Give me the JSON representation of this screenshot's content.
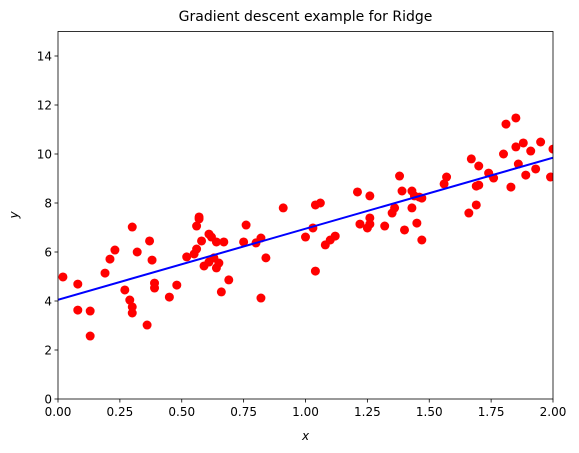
{
  "chart_data": {
    "type": "scatter",
    "title": "Gradient descent example for Ridge",
    "xlabel": "x",
    "ylabel": "y",
    "xlim": [
      0,
      2
    ],
    "ylim": [
      0,
      15
    ],
    "xticks": [
      {
        "value": 0,
        "label": "0.00"
      },
      {
        "value": 0.25,
        "label": "0.25"
      },
      {
        "value": 0.5,
        "label": "0.50"
      },
      {
        "value": 0.75,
        "label": "0.75"
      },
      {
        "value": 1,
        "label": "1.00"
      },
      {
        "value": 1.25,
        "label": "1.25"
      },
      {
        "value": 1.5,
        "label": "1.50"
      },
      {
        "value": 1.75,
        "label": "1.75"
      },
      {
        "value": 2,
        "label": "2.00"
      }
    ],
    "yticks": [
      0,
      2,
      4,
      6,
      8,
      10,
      12,
      14
    ],
    "points": {
      "color": "#ff0000",
      "x": [
        0.02,
        0.08,
        0.08,
        0.13,
        0.13,
        0.19,
        0.21,
        0.23,
        0.27,
        0.29,
        0.3,
        0.3,
        0.3,
        0.32,
        0.36,
        0.37,
        0.38,
        0.39,
        0.39,
        0.45,
        0.48,
        0.52,
        0.55,
        0.56,
        0.56,
        0.57,
        0.57,
        0.58,
        0.59,
        0.61,
        0.61,
        0.62,
        0.63,
        0.64,
        0.64,
        0.65,
        0.66,
        0.67,
        0.69,
        0.75,
        0.76,
        0.8,
        0.82,
        0.82,
        0.84,
        0.91,
        1.0,
        1.03,
        1.04,
        1.04,
        1.06,
        1.08,
        1.1,
        1.12,
        1.21,
        1.22,
        1.25,
        1.26,
        1.26,
        1.26,
        1.32,
        1.35,
        1.36,
        1.38,
        1.39,
        1.4,
        1.43,
        1.43,
        1.44,
        1.45,
        1.46,
        1.47,
        1.47,
        1.56,
        1.57,
        1.66,
        1.67,
        1.69,
        1.69,
        1.7,
        1.7,
        1.74,
        1.76,
        1.8,
        1.81,
        1.83,
        1.85,
        1.85,
        1.86,
        1.88,
        1.89,
        1.91,
        1.93,
        1.95,
        1.99,
        2.0
      ],
      "y": [
        4.98,
        4.69,
        3.63,
        3.59,
        2.57,
        5.14,
        5.71,
        6.08,
        4.45,
        4.04,
        3.76,
        3.51,
        7.02,
        6.0,
        3.02,
        6.45,
        5.67,
        4.73,
        4.53,
        4.16,
        4.65,
        5.8,
        5.92,
        6.12,
        7.06,
        7.35,
        7.43,
        6.45,
        5.43,
        5.59,
        6.73,
        6.61,
        5.76,
        5.35,
        6.41,
        5.55,
        4.37,
        6.41,
        4.86,
        6.41,
        7.1,
        6.37,
        6.57,
        4.12,
        5.76,
        7.8,
        6.61,
        6.98,
        7.92,
        5.22,
        8.0,
        6.29,
        6.49,
        6.65,
        8.45,
        7.14,
        6.98,
        8.29,
        7.39,
        7.14,
        7.06,
        7.59,
        7.8,
        9.1,
        8.49,
        6.9,
        8.49,
        7.8,
        8.29,
        7.18,
        8.24,
        8.2,
        6.49,
        8.78,
        9.06,
        7.59,
        9.8,
        8.69,
        7.92,
        9.51,
        8.73,
        9.22,
        9.02,
        10.0,
        11.22,
        8.65,
        10.29,
        11.47,
        9.59,
        10.45,
        9.14,
        10.12,
        9.39,
        10.49,
        9.06,
        10.2
      ]
    },
    "line": {
      "color": "#0000ff",
      "x": [
        0,
        2
      ],
      "y": [
        4.05,
        9.85
      ]
    }
  }
}
